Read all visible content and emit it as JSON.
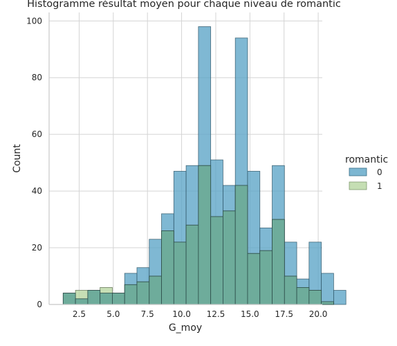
{
  "chart_data": {
    "type": "bar",
    "title": "Histogramme résultat moyen pour chaque niveau de romantic",
    "xlabel": "G_moy",
    "ylabel": "Count",
    "xlim": [
      0.3,
      20.3
    ],
    "ylim": [
      0,
      103
    ],
    "bin_start": 1.33,
    "bin_width": 0.9,
    "x_ticks": [
      2.5,
      5.0,
      7.5,
      10.0,
      12.5,
      15.0,
      17.5,
      20.0
    ],
    "x_tick_labels": [
      "2.5",
      "5.0",
      "7.5",
      "10.0",
      "12.5",
      "15.0",
      "17.5",
      "20.0"
    ],
    "y_ticks": [
      0,
      20,
      40,
      60,
      80,
      100
    ],
    "y_tick_labels": [
      "0",
      "20",
      "40",
      "60",
      "80",
      "100"
    ],
    "grid": true,
    "legend": {
      "title": "romantic",
      "placement": "right"
    },
    "series": [
      {
        "name": "0",
        "color": "#5ba4c6",
        "values": [
          4,
          2,
          5,
          4,
          4,
          11,
          13,
          23,
          32,
          47,
          49,
          98,
          51,
          42,
          94,
          47,
          27,
          49,
          22,
          9,
          22,
          11,
          5
        ]
      },
      {
        "name": "1",
        "color": "#b7d6a0",
        "values": [
          4,
          5,
          5,
          6,
          4,
          7,
          8,
          10,
          26,
          22,
          28,
          49,
          31,
          33,
          42,
          18,
          19,
          30,
          10,
          6,
          5,
          1,
          0
        ]
      }
    ],
    "overlap_color": "#6aaa9a"
  }
}
